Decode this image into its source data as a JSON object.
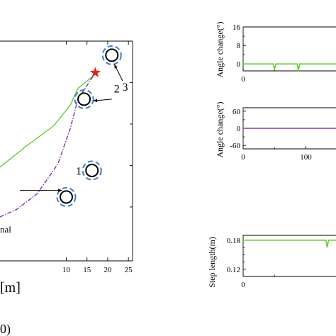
{
  "chart_data": [
    {
      "type": "line",
      "title": "",
      "xlabel": "[m]",
      "ylabel": "",
      "xticks": [
        "10",
        "15",
        "20",
        "25"
      ],
      "xlim": [
        -6,
        26
      ],
      "ylim": [
        -6.5,
        20
      ],
      "legend_text": "nal",
      "series": [
        {
          "style": "solid",
          "color": "#66cc33",
          "x": [
            -6,
            0,
            7,
            11,
            12.8,
            16.5
          ],
          "y": [
            4.8,
            7.2,
            9.8,
            12.3,
            14.3,
            15.8
          ]
        },
        {
          "style": "dashdot",
          "color": "#7a2fb0",
          "x": [
            -6,
            -2,
            3,
            8,
            11,
            12.8,
            16.5
          ],
          "y": [
            -1.2,
            -0.3,
            1.6,
            5.2,
            9.5,
            13.0,
            15.8
          ]
        }
      ],
      "goal": {
        "x": 17,
        "y": 16.2,
        "color": "#e02424"
      },
      "obstacles": [
        {
          "label": "1",
          "x": 10,
          "y": 1.2
        },
        {
          "label": "2",
          "x": 14.3,
          "y": 13.0
        },
        {
          "label": "3",
          "x": 21.0,
          "y": 18.3
        },
        {
          "label": "",
          "x": 16.2,
          "y": 4.4
        }
      ],
      "obstacle_labels": [
        {
          "text": "1",
          "x": 13.0,
          "y": 3.9
        },
        {
          "text": "2",
          "x": 22.2,
          "y": 13.8
        },
        {
          "text": "3",
          "x": 24.2,
          "y": 14.0
        }
      ],
      "partial_labels": [
        {
          "text": "0)",
          "x": -2.5,
          "y": -16.2
        }
      ]
    },
    {
      "type": "line",
      "ylabel": "Angle change(°)",
      "xlim": [
        0,
        200
      ],
      "ylim": [
        -3,
        16
      ],
      "yticks": [
        "16",
        "8",
        "0"
      ],
      "xticks": [
        "0"
      ],
      "series": [
        {
          "color": "#66cc33",
          "x": [
            0,
            48,
            50,
            52,
            86,
            88,
            90,
            200
          ],
          "y": [
            0,
            0,
            -2.5,
            0,
            0,
            -3,
            0,
            0
          ]
        }
      ]
    },
    {
      "type": "line",
      "ylabel": "Angle change(°)",
      "xlim": [
        0,
        200
      ],
      "ylim": [
        -72,
        72
      ],
      "yticks": [
        "60",
        "0",
        "-60"
      ],
      "xticks": [
        "0",
        "100"
      ],
      "series": [
        {
          "color": "#8a3fb0",
          "x": [
            0,
            200
          ],
          "y": [
            0,
            0
          ]
        }
      ]
    },
    {
      "type": "line",
      "ylabel": "Step length(m)",
      "xlim": [
        0,
        200
      ],
      "ylim": [
        0.105,
        0.19
      ],
      "yticks": [
        "0.18",
        "0.12"
      ],
      "xticks": [
        "0"
      ],
      "series": [
        {
          "color": "#66cc33",
          "x": [
            0,
            132,
            134,
            136,
            138,
            200
          ],
          "y": [
            0.18,
            0.18,
            0.165,
            0.18,
            0.18,
            0.18
          ]
        }
      ]
    }
  ]
}
